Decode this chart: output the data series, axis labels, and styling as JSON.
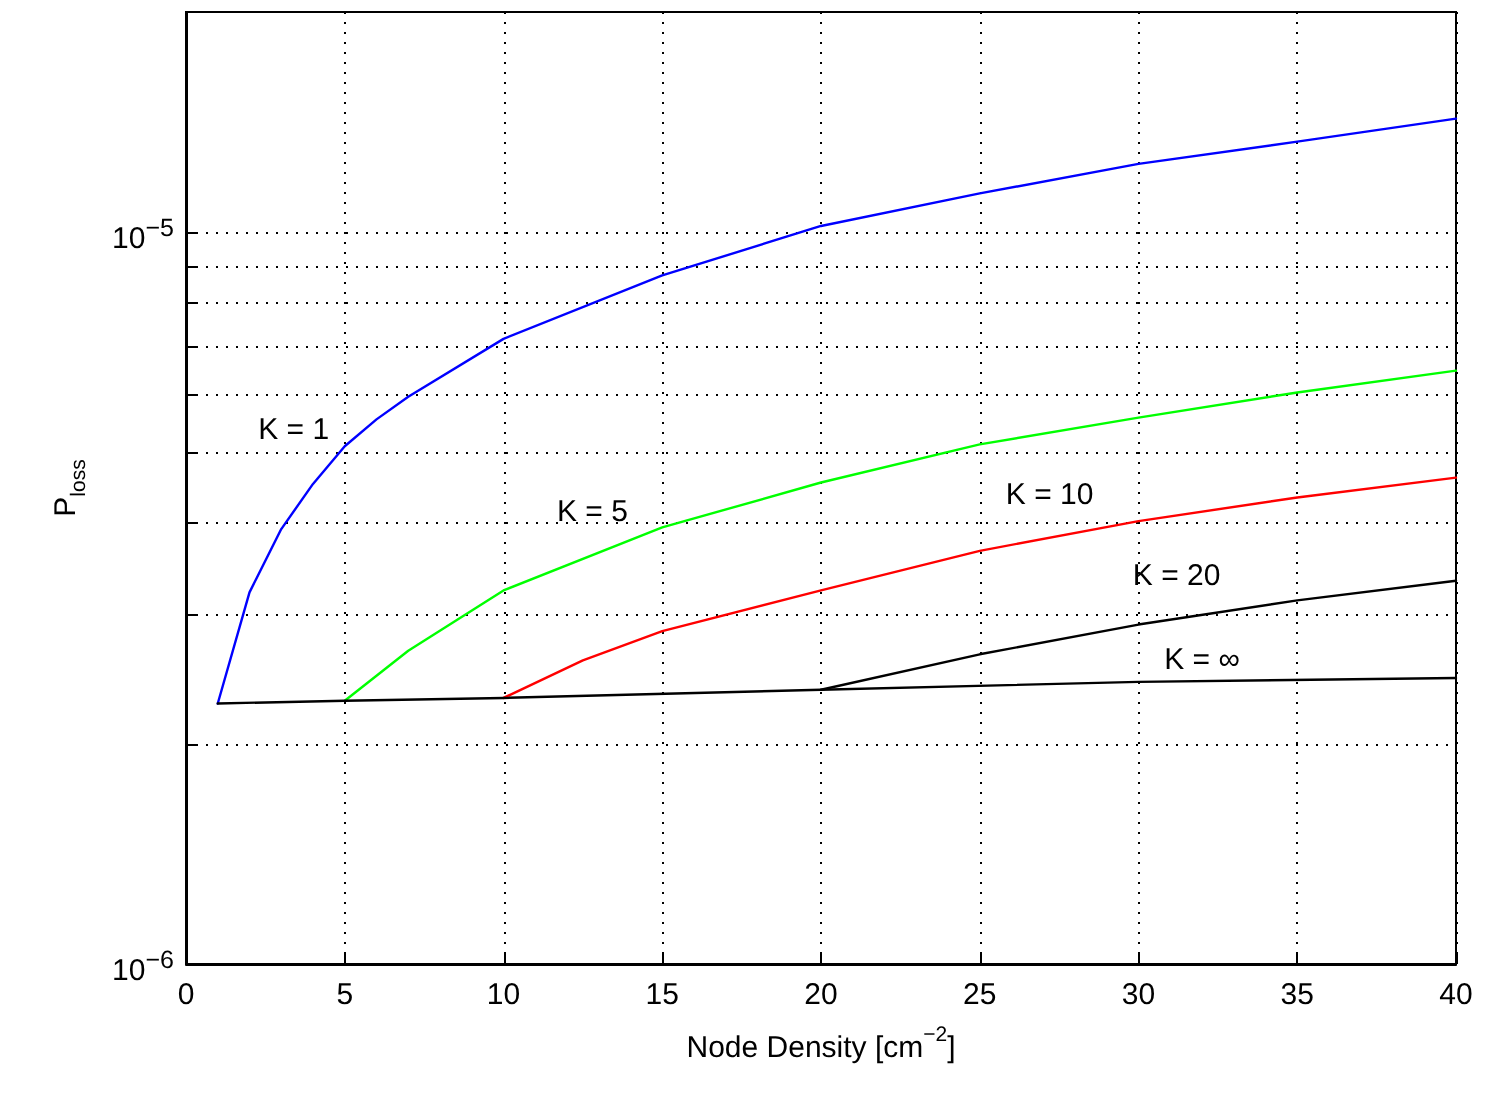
{
  "chart_data": {
    "type": "line",
    "xlabel": "Node Density [cm$^{−2}$]",
    "ylabel": "P$_{loss}$",
    "xlim": [
      0,
      40
    ],
    "xticks": [
      0,
      5,
      10,
      15,
      20,
      25,
      30,
      35,
      40
    ],
    "ylim": [
      1e-06,
      2e-05
    ],
    "log": true,
    "yticks": [
      {
        "value": 1e-06,
        "label": "10$^{−6}$"
      },
      {
        "value": 2e-06,
        "label": null
      },
      {
        "value": 3e-06,
        "label": null
      },
      {
        "value": 4e-06,
        "label": null
      },
      {
        "value": 5e-06,
        "label": null
      },
      {
        "value": 6e-06,
        "label": null
      },
      {
        "value": 7e-06,
        "label": null
      },
      {
        "value": 8e-06,
        "label": null
      },
      {
        "value": 9e-06,
        "label": null
      },
      {
        "value": 1e-05,
        "label": "10$^{−5}$"
      }
    ],
    "grid": true,
    "marker": "none",
    "line_style": "solid",
    "series": [
      {
        "name": "K = 1",
        "color": "#0000ff",
        "x": [
          1,
          2,
          3,
          4,
          5,
          6,
          7,
          10,
          15,
          20,
          25,
          30,
          35,
          40
        ],
        "values": [
          2.27e-06,
          3.22e-06,
          3.93e-06,
          4.53e-06,
          5.1e-06,
          5.55e-06,
          5.96e-06,
          7.15e-06,
          8.73e-06,
          1.02e-05,
          1.13e-05,
          1.24e-05,
          1.33e-05,
          1.43e-05
        ]
      },
      {
        "name": "K = 5",
        "color": "#00ff00",
        "x": [
          5,
          7,
          10,
          15,
          20,
          25,
          30,
          35,
          40
        ],
        "values": [
          2.29e-06,
          2.68e-06,
          3.24e-06,
          3.95e-06,
          4.55e-06,
          5.13e-06,
          5.58e-06,
          6.04e-06,
          6.47e-06
        ]
      },
      {
        "name": "K = 10",
        "color": "#ff0000",
        "x": [
          10,
          12.5,
          15,
          20,
          25,
          30,
          35,
          40
        ],
        "values": [
          2.31e-06,
          2.6e-06,
          2.85e-06,
          3.24e-06,
          3.67e-06,
          4.03e-06,
          4.34e-06,
          4.62e-06
        ]
      },
      {
        "name": "K = 20",
        "color": "#000000",
        "x": [
          20,
          25,
          30,
          35,
          40
        ],
        "values": [
          2.37e-06,
          2.65e-06,
          2.91e-06,
          3.14e-06,
          3.34e-06
        ]
      },
      {
        "name": "K = ∞",
        "color": "#000000",
        "x": [
          1,
          5,
          10,
          20,
          30,
          40
        ],
        "values": [
          2.27e-06,
          2.29e-06,
          2.31e-06,
          2.37e-06,
          2.43e-06,
          2.46e-06
        ]
      }
    ]
  }
}
